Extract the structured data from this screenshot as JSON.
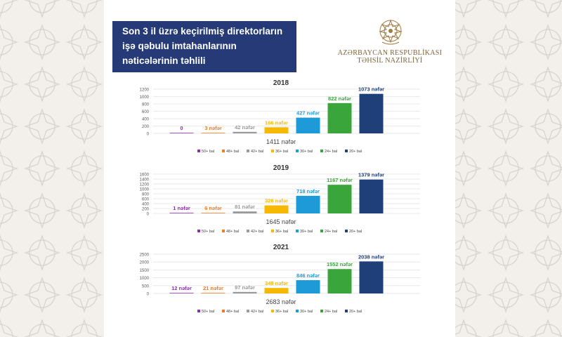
{
  "header": {
    "title_lines": [
      "Son 3 il üzrə keçirilmiş direktorların",
      "işə qəbulu imtahanlarının",
      "nəticələrinin təhlili"
    ]
  },
  "ministry": {
    "line1": "AZƏRBAYCAN RESPUBLİKASI",
    "line2": "TƏHSİL NAZİRLİYİ",
    "emblem_icon": "coat-of-arms-icon"
  },
  "colors": {
    "title_bg": "#253a77",
    "series": [
      "#8b2fb0",
      "#f47a20",
      "#9a9a9a",
      "#f6b800",
      "#1d9ad8",
      "#3aa53a",
      "#1f3f78"
    ]
  },
  "chart_data": [
    {
      "type": "bar",
      "title": "2018",
      "categories": [
        "50+ bal",
        "48+ bal",
        "42+ bal",
        "36+ bal",
        "30+ bal",
        "24+ bal",
        "20+ bal"
      ],
      "values": [
        0,
        3,
        42,
        166,
        427,
        822,
        1073
      ],
      "data_labels": [
        "0",
        "3 nəfər",
        "42 nəfər",
        "166 nəfər",
        "427 nəfər",
        "822 nəfər",
        "1073 nəfər"
      ],
      "yticks": [
        0,
        200,
        400,
        600,
        800,
        1000,
        1200
      ],
      "ylim": [
        0,
        1200
      ],
      "total_label": "1411 nəfər",
      "legend": [
        "50+ bal",
        "48+ bal",
        "42+ bal",
        "36+ bal",
        "30+ bal",
        "24+ bal",
        "20+ bal"
      ],
      "legend_position": "bottom",
      "grid": true
    },
    {
      "type": "bar",
      "title": "2019",
      "categories": [
        "50+ bal",
        "48+ bal",
        "42+ bal",
        "36+ bal",
        "30+ bal",
        "24+ bal",
        "20+ bal"
      ],
      "values": [
        1,
        6,
        81,
        328,
        718,
        1167,
        1379
      ],
      "data_labels": [
        "1 nəfər",
        "6 nəfər",
        "81 nəfər",
        "328 nəfər",
        "718 nəfər",
        "1167 nəfər",
        "1379 nəfər"
      ],
      "yticks": [
        0,
        200,
        400,
        600,
        800,
        1000,
        1200,
        1400,
        1600
      ],
      "ylim": [
        0,
        1600
      ],
      "total_label": "1645 nəfər",
      "legend": [
        "50+ bal",
        "48+ bal",
        "42+ bal",
        "36+ bal",
        "30+ bal",
        "24+ bal",
        "20+ bal"
      ],
      "legend_position": "bottom",
      "grid": true
    },
    {
      "type": "bar",
      "title": "2021",
      "categories": [
        "50+ bal",
        "48+ bal",
        "42+ bal",
        "36+ bal",
        "30+ bal",
        "24+ bal",
        "20+ bal"
      ],
      "values": [
        12,
        21,
        97,
        349,
        846,
        1552,
        2038
      ],
      "data_labels": [
        "12 nəfər",
        "21 nəfər",
        "97 nəfər",
        "349 nəfər",
        "846 nəfər",
        "1552 nəfər",
        "2038 nəfər"
      ],
      "yticks": [
        0,
        500,
        1000,
        1500,
        2000,
        2500
      ],
      "ylim": [
        0,
        2500
      ],
      "total_label": "2683 nəfər",
      "legend": [
        "50+ bal",
        "48+ bal",
        "42+ bal",
        "36+ bal",
        "30+ bal",
        "24+ bal",
        "20+ bal"
      ],
      "legend_position": "bottom",
      "grid": true
    }
  ]
}
